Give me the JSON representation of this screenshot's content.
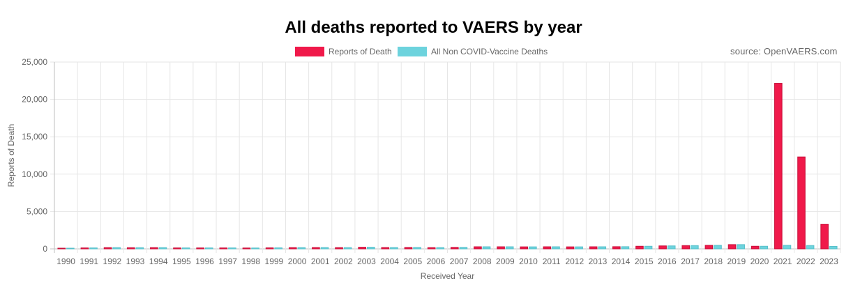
{
  "source_note": "source: OpenVAERS.com",
  "chart_data": {
    "type": "bar",
    "title": "All deaths reported to VAERS by year",
    "xlabel": "Received Year",
    "ylabel": "Reports of Death",
    "ylim": [
      0,
      25000
    ],
    "yticks": [
      "0",
      "5,000",
      "10,000",
      "15,000",
      "20,000",
      "25,000"
    ],
    "grid": true,
    "legend_position": "top-center",
    "categories": [
      "1990",
      "1991",
      "1992",
      "1993",
      "1994",
      "1995",
      "1996",
      "1997",
      "1998",
      "1999",
      "2000",
      "2001",
      "2002",
      "2003",
      "2004",
      "2005",
      "2006",
      "2007",
      "2008",
      "2009",
      "2010",
      "2011",
      "2012",
      "2013",
      "2014",
      "2015",
      "2016",
      "2017",
      "2018",
      "2019",
      "2020",
      "2021",
      "2022",
      "2023"
    ],
    "series": [
      {
        "name": "Reports of Death",
        "color": "#f0194a",
        "values": [
          40,
          130,
          170,
          160,
          170,
          130,
          130,
          130,
          120,
          140,
          170,
          180,
          170,
          220,
          180,
          190,
          170,
          200,
          280,
          280,
          270,
          280,
          270,
          280,
          290,
          350,
          400,
          440,
          480,
          570,
          350,
          22150,
          12300,
          3300
        ]
      },
      {
        "name": "All Non COVID-Vaccine Deaths",
        "color": "#6dd3dd",
        "values": [
          40,
          130,
          170,
          160,
          170,
          130,
          130,
          130,
          120,
          140,
          170,
          180,
          170,
          220,
          180,
          190,
          170,
          200,
          280,
          280,
          270,
          280,
          270,
          280,
          290,
          350,
          400,
          440,
          480,
          570,
          350,
          480,
          450,
          330
        ]
      }
    ]
  }
}
